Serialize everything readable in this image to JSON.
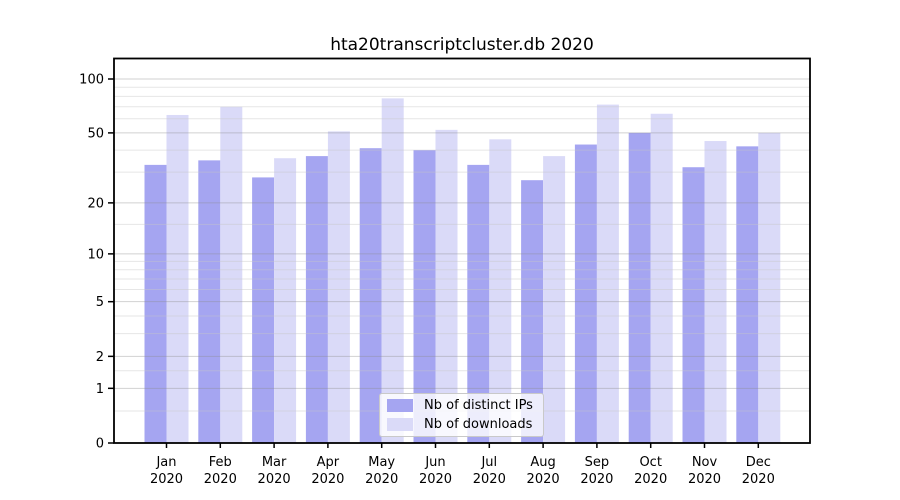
{
  "chart_data": {
    "type": "bar",
    "title": "hta20transcriptcluster.db 2020",
    "categories": [
      "Jan",
      "Feb",
      "Mar",
      "Apr",
      "May",
      "Jun",
      "Jul",
      "Aug",
      "Sep",
      "Oct",
      "Nov",
      "Dec"
    ],
    "x_tick_second_line": "2020",
    "series": [
      {
        "name": "Nb of distinct IPs",
        "color": "#a5a5f1",
        "values": [
          33,
          35,
          28,
          37,
          41,
          40,
          33,
          27,
          43,
          50,
          32,
          42
        ]
      },
      {
        "name": "Nb of downloads",
        "color": "#dadaf8",
        "values": [
          63,
          70,
          36,
          51,
          78,
          52,
          46,
          37,
          72,
          64,
          45,
          50
        ]
      }
    ],
    "y_axis": {
      "scale": "log(1+y)",
      "tick_labels": [
        "0",
        "1",
        "2",
        "5",
        "10",
        "20",
        "50",
        "100"
      ],
      "tick_values": [
        0,
        1,
        2,
        5,
        10,
        20,
        50,
        100
      ],
      "minor_tick_values": [
        0.5,
        1.5,
        3,
        4,
        6,
        7,
        8,
        9,
        15,
        30,
        40,
        60,
        70,
        80,
        90
      ],
      "range": [
        0,
        100
      ]
    },
    "grid": "horizontal",
    "legend_position": "bottom-center",
    "frame_color": "#000000",
    "major_grid_color": "#c9c9c9",
    "minor_grid_color": "#ebebeb",
    "text_color": "#000000"
  }
}
